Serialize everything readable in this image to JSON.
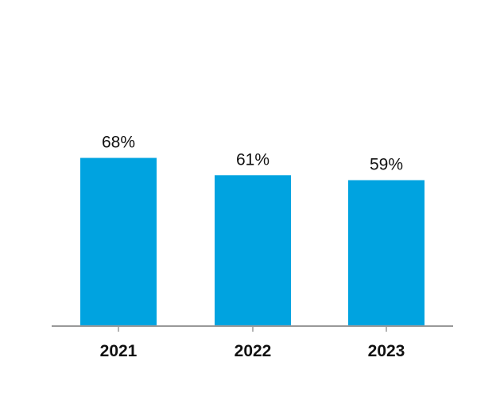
{
  "chart_data": {
    "type": "bar",
    "categories": [
      "2021",
      "2022",
      "2023"
    ],
    "values": [
      68,
      61,
      59
    ],
    "value_labels": [
      "68%",
      "61%",
      "59%"
    ],
    "unit": "%",
    "title": "",
    "xlabel": "",
    "ylabel": "",
    "ylim": [
      0,
      100
    ],
    "grid": false,
    "legend": "none",
    "bar_color": "#00A3E0",
    "axis_color": "#999999"
  }
}
